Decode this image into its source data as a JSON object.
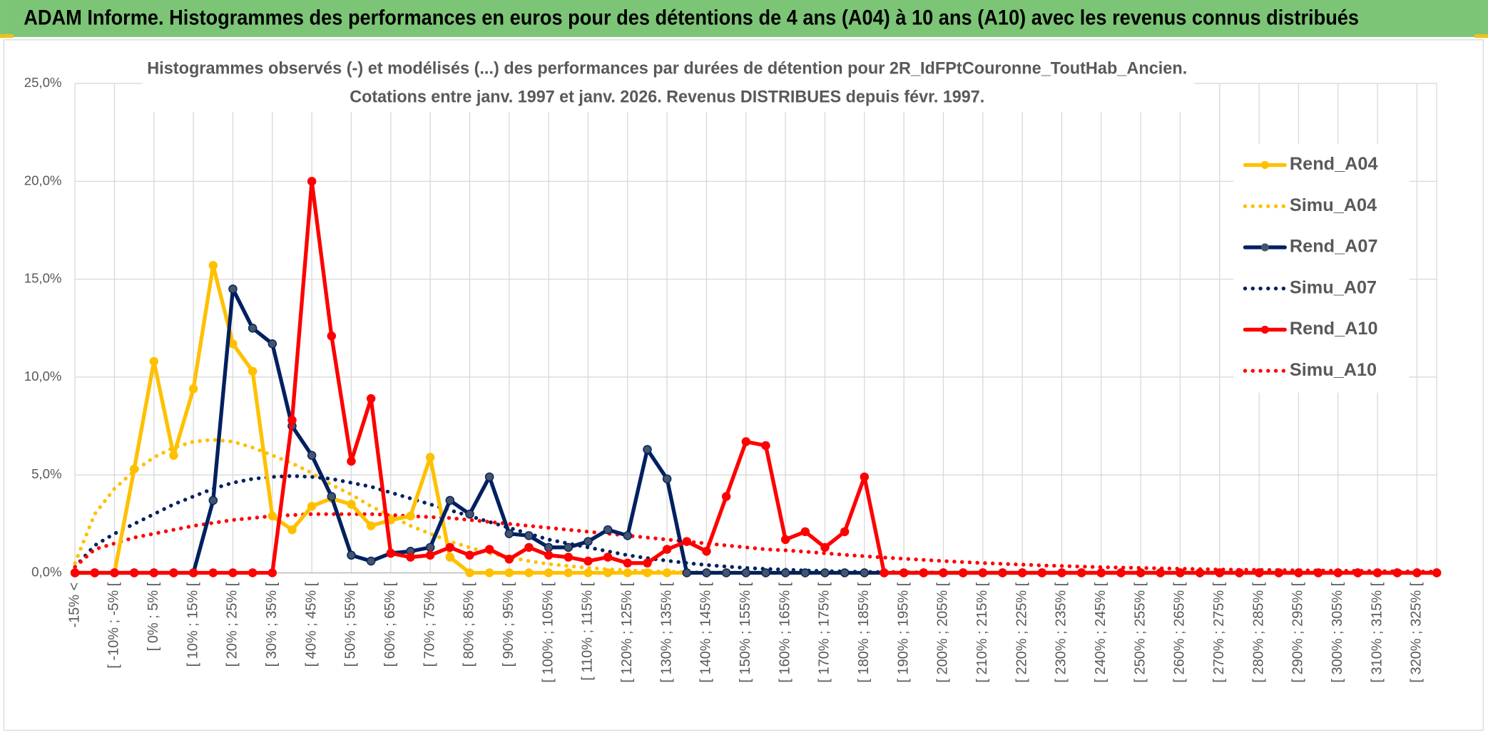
{
  "header": {
    "title": "ADAM Informe. Histogrammes des performances en euros pour des détentions de 4 ans (A04) à 10 ans (A10) avec les revenus connus distribués"
  },
  "chart_data": {
    "type": "line",
    "title": "Histogrammes observés (-) et modélisés (...) des performances par durées de détention pour 2R_IdFPtCouronne_ToutHab_Ancien.",
    "subtitle": "Cotations entre janv. 1997 et janv. 2026. Revenus DISTRIBUES depuis févr. 1997.",
    "categories": [
      "-15% <",
      null,
      "[ -10% ; -5% [",
      null,
      "[ 0% ; 5% [",
      null,
      "[ 10% ; 15% [",
      null,
      "[ 20% ; 25% [",
      null,
      "[ 30% ; 35% [",
      null,
      "[ 40% ; 45% [",
      null,
      "[ 50% ; 55% [",
      null,
      "[ 60% ; 65% [",
      null,
      "[ 70% ; 75% [",
      null,
      "[ 80% ; 85% [",
      null,
      "[ 90% ; 95% [",
      null,
      "[ 100% ; 105% [",
      null,
      "[ 110% ; 115% [",
      null,
      "[ 120% ; 125% [",
      null,
      "[ 130% ; 135% [",
      null,
      "[ 140% ; 145% [",
      null,
      "[ 150% ; 155% [",
      null,
      "[ 160% ; 165% [",
      null,
      "[ 170% ; 175% [",
      null,
      "[ 180% ; 185% [",
      null,
      "[ 190% ; 195% [",
      null,
      "[ 200% ; 205% [",
      null,
      "[ 210% ; 215% [",
      null,
      "[ 220% ; 225% [",
      null,
      "[ 230% ; 235% [",
      null,
      "[ 240% ; 245% [",
      null,
      "[ 250% ; 255% [",
      null,
      "[ 260% ; 265% [",
      null,
      "[ 270% ; 275% [",
      null,
      "[ 280% ; 285% [",
      null,
      "[ 290% ; 295% [",
      null,
      "[ 300% ; 305% [",
      null,
      "[ 310% ; 315% [",
      null,
      "[ 320% ; 325% [",
      null
    ],
    "series": [
      {
        "name": "Rend_A04",
        "color": "#ffc000",
        "dash": "solid",
        "markers": true,
        "values": [
          0,
          0,
          0,
          5.3,
          10.8,
          6.0,
          9.4,
          15.7,
          11.7,
          10.3,
          2.9,
          2.2,
          3.4,
          3.8,
          3.5,
          2.4,
          2.7,
          2.9,
          5.9,
          0.8,
          0,
          0,
          0,
          0,
          0,
          0,
          0,
          0,
          0,
          0,
          0,
          0,
          0,
          0,
          0,
          0,
          0,
          0,
          0,
          0,
          0,
          0,
          0,
          0,
          0,
          0,
          0,
          0,
          0,
          0,
          0,
          0,
          0,
          0,
          0,
          0,
          0,
          0,
          0,
          0,
          0,
          0,
          0,
          0,
          0,
          0,
          0,
          0,
          0,
          0
        ]
      },
      {
        "name": "Simu_A04",
        "color": "#ffc000",
        "dash": "dotted",
        "markers": false,
        "values": [
          0.5,
          3.0,
          4.3,
          5.2,
          5.9,
          6.4,
          6.7,
          6.8,
          6.7,
          6.4,
          6.0,
          5.6,
          5.1,
          4.5,
          4.0,
          3.4,
          2.9,
          2.4,
          2.0,
          1.6,
          1.3,
          1.0,
          0.8,
          0.6,
          0.45,
          0.35,
          0.25,
          0.18,
          0.13,
          0.09,
          0.06,
          0.04,
          0.03,
          0.02,
          0.01,
          0.01,
          0,
          0,
          0,
          0,
          0,
          0,
          0,
          0,
          0,
          0,
          0,
          0,
          0,
          0,
          0,
          0,
          0,
          0,
          0,
          0,
          0,
          0,
          0,
          0,
          0,
          0,
          0,
          0,
          0,
          0,
          0,
          0,
          0,
          0
        ]
      },
      {
        "name": "Rend_A07",
        "color": "#002060",
        "dash": "solid",
        "markers": true,
        "values": [
          0,
          0,
          0,
          0,
          0,
          0,
          0,
          3.7,
          14.5,
          12.5,
          11.7,
          7.5,
          6.0,
          3.9,
          0.9,
          0.6,
          1.0,
          1.1,
          1.3,
          3.7,
          3.0,
          4.9,
          2.0,
          1.9,
          1.3,
          1.3,
          1.6,
          2.2,
          1.9,
          6.3,
          4.8,
          0,
          0,
          0,
          0,
          0,
          0,
          0,
          0,
          0,
          0,
          0,
          0,
          0,
          0,
          0,
          0,
          0,
          0,
          0,
          0,
          0,
          0,
          0,
          0,
          0,
          0,
          0,
          0,
          0,
          0,
          0,
          0,
          0,
          0,
          0,
          0,
          0,
          0,
          0
        ]
      },
      {
        "name": "Simu_A07",
        "color": "#002060",
        "dash": "dotted",
        "markers": false,
        "values": [
          0.3,
          1.4,
          2.0,
          2.5,
          3.0,
          3.5,
          3.9,
          4.3,
          4.6,
          4.8,
          4.9,
          4.95,
          4.9,
          4.8,
          4.6,
          4.4,
          4.1,
          3.8,
          3.5,
          3.2,
          2.9,
          2.6,
          2.3,
          2.0,
          1.7,
          1.5,
          1.3,
          1.1,
          0.9,
          0.75,
          0.62,
          0.5,
          0.4,
          0.32,
          0.25,
          0.2,
          0.16,
          0.12,
          0.09,
          0.07,
          0.05,
          0.04,
          0.03,
          0.02,
          0.015,
          0.01,
          0.01,
          0,
          0,
          0,
          0,
          0,
          0,
          0,
          0,
          0,
          0,
          0,
          0,
          0,
          0,
          0,
          0,
          0,
          0,
          0,
          0,
          0,
          0,
          0
        ]
      },
      {
        "name": "Rend_A10",
        "color": "#ff0000",
        "dash": "solid",
        "markers": true,
        "values": [
          0,
          0,
          0,
          0,
          0,
          0,
          0,
          0,
          0,
          0,
          0,
          7.8,
          20.0,
          12.1,
          5.7,
          8.9,
          1.0,
          0.8,
          0.9,
          1.3,
          0.9,
          1.2,
          0.7,
          1.3,
          0.9,
          0.8,
          0.6,
          0.8,
          0.5,
          0.5,
          1.2,
          1.6,
          1.1,
          3.9,
          6.7,
          6.5,
          1.7,
          2.1,
          1.3,
          2.1,
          4.9,
          0,
          0,
          0,
          0,
          0,
          0,
          0,
          0,
          0,
          0,
          0,
          0,
          0,
          0,
          0,
          0,
          0,
          0,
          0,
          0,
          0,
          0,
          0,
          0,
          0,
          0,
          0,
          0,
          0
        ]
      },
      {
        "name": "Simu_A10",
        "color": "#ff0000",
        "dash": "dotted",
        "markers": false,
        "values": [
          0.3,
          1.2,
          1.5,
          1.8,
          2.0,
          2.2,
          2.4,
          2.55,
          2.7,
          2.8,
          2.9,
          2.95,
          3.0,
          3.0,
          3.0,
          3.0,
          2.95,
          2.9,
          2.85,
          2.8,
          2.7,
          2.6,
          2.5,
          2.4,
          2.3,
          2.2,
          2.1,
          2.0,
          1.9,
          1.8,
          1.7,
          1.6,
          1.5,
          1.4,
          1.3,
          1.2,
          1.15,
          1.08,
          1.0,
          0.92,
          0.85,
          0.78,
          0.72,
          0.66,
          0.6,
          0.55,
          0.5,
          0.46,
          0.42,
          0.38,
          0.35,
          0.32,
          0.29,
          0.27,
          0.25,
          0.23,
          0.21,
          0.19,
          0.17,
          0.16,
          0.15,
          0.14,
          0.13,
          0.12,
          0.11,
          0.1,
          0.09,
          0.08,
          0.07,
          0.06
        ]
      }
    ],
    "ylim": [
      0,
      25
    ],
    "yticks": [
      {
        "value": 0,
        "label": "0,0%"
      },
      {
        "value": 5,
        "label": "5,0%"
      },
      {
        "value": 10,
        "label": "10,0%"
      },
      {
        "value": 15,
        "label": "15,0%"
      },
      {
        "value": 20,
        "label": "20,0%"
      },
      {
        "value": 25,
        "label": "25,0%"
      }
    ],
    "grid": true,
    "legend": "right"
  }
}
